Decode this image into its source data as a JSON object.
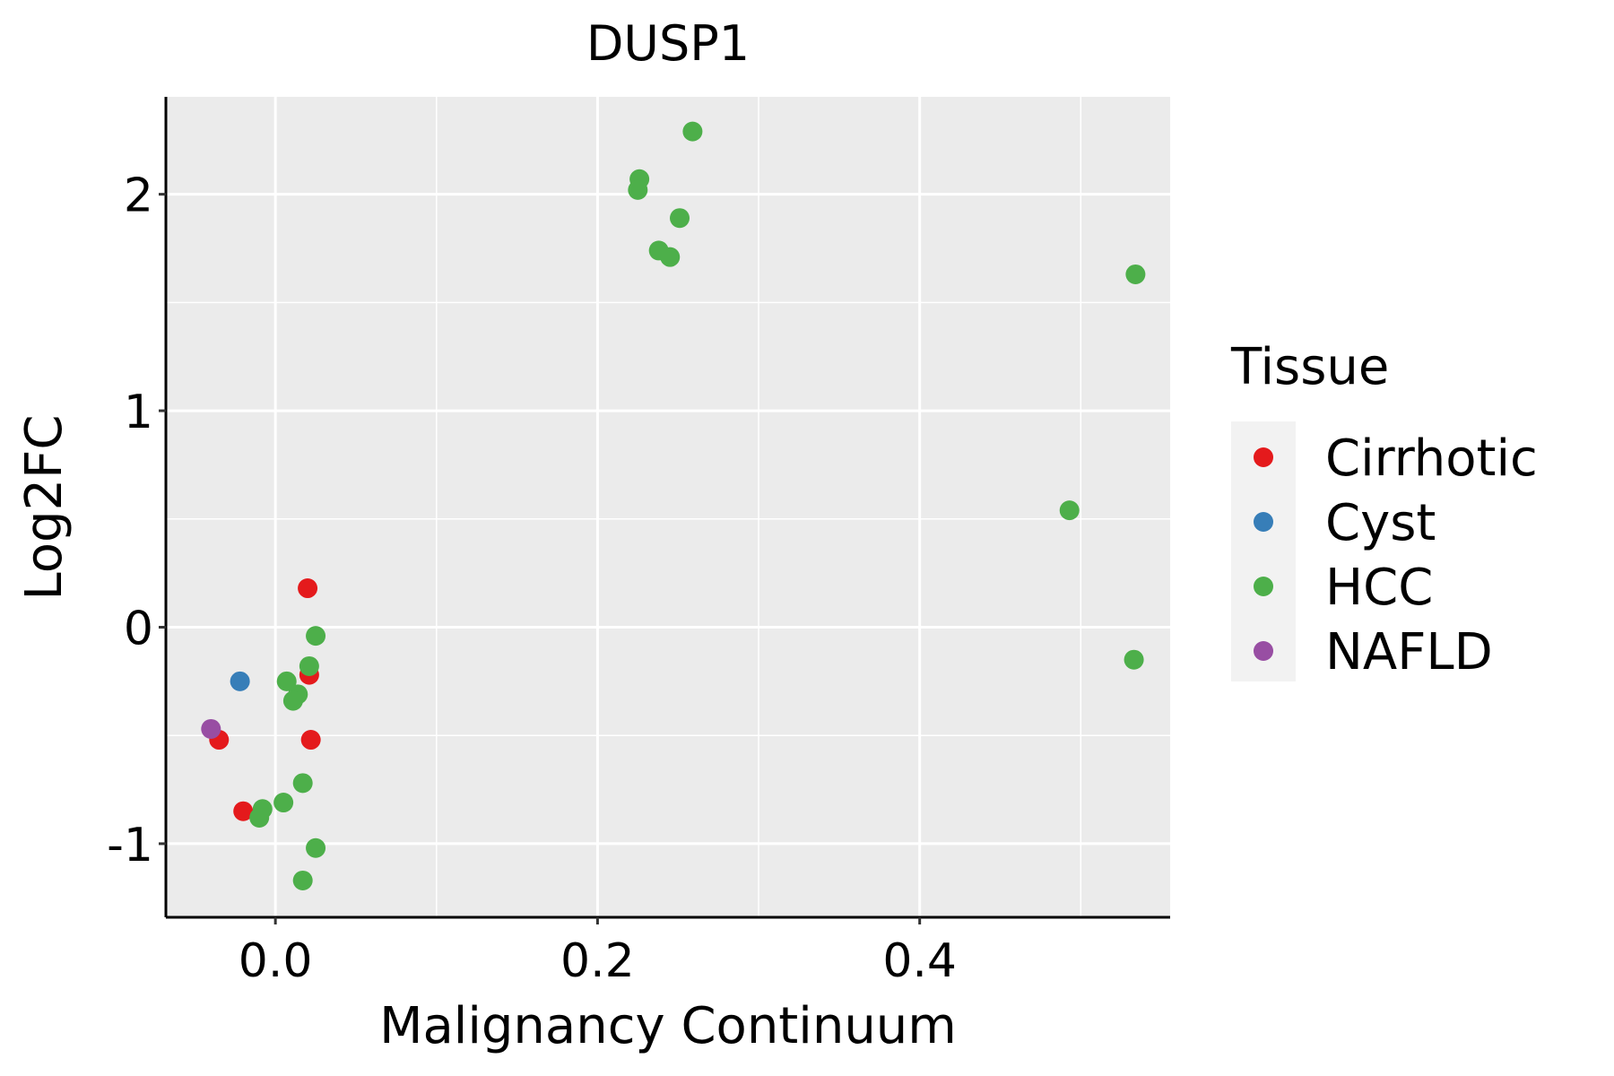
{
  "chart_data": {
    "type": "scatter",
    "title": "DUSP1",
    "xlabel": "Malignancy Continuum",
    "ylabel": "Log2FC",
    "xlim": [
      -0.068,
      0.5555
    ],
    "ylim": [
      -1.34,
      2.45
    ],
    "x_ticks": [
      0.0,
      0.2,
      0.4
    ],
    "x_tick_labels": [
      "0.0",
      "0.2",
      "0.4"
    ],
    "y_ticks": [
      -1,
      0,
      1,
      2
    ],
    "y_tick_labels": [
      "-1",
      "0",
      "1",
      "2"
    ],
    "grid": true,
    "legend": {
      "title": "Tissue",
      "position": "right",
      "entries": [
        {
          "label": "Cirrhotic",
          "color": "#e41a1c"
        },
        {
          "label": "Cyst",
          "color": "#377eb8"
        },
        {
          "label": "HCC",
          "color": "#4daf4a"
        },
        {
          "label": "NAFLD",
          "color": "#984ea3"
        }
      ]
    },
    "series": [
      {
        "name": "Cirrhotic",
        "color": "#e41a1c",
        "x": [
          0.02,
          0.021,
          0.022,
          -0.035,
          -0.02
        ],
        "y": [
          0.18,
          -0.22,
          -0.52,
          -0.52,
          -0.85
        ]
      },
      {
        "name": "Cyst",
        "color": "#377eb8",
        "x": [
          -0.022
        ],
        "y": [
          -0.25
        ]
      },
      {
        "name": "HCC",
        "color": "#4daf4a",
        "x": [
          0.259,
          0.226,
          0.225,
          0.251,
          0.238,
          0.245,
          0.534,
          0.493,
          0.533,
          0.025,
          0.021,
          0.007,
          0.014,
          0.011,
          0.017,
          0.005,
          -0.008,
          -0.01,
          0.025,
          0.017
        ],
        "y": [
          2.29,
          2.07,
          2.02,
          1.89,
          1.74,
          1.71,
          1.63,
          0.54,
          -0.15,
          -0.04,
          -0.18,
          -0.25,
          -0.31,
          -0.34,
          -0.72,
          -0.81,
          -0.84,
          -0.88,
          -1.02,
          -1.17
        ]
      },
      {
        "name": "NAFLD",
        "color": "#984ea3",
        "x": [
          -0.04
        ],
        "y": [
          -0.47
        ]
      }
    ]
  }
}
